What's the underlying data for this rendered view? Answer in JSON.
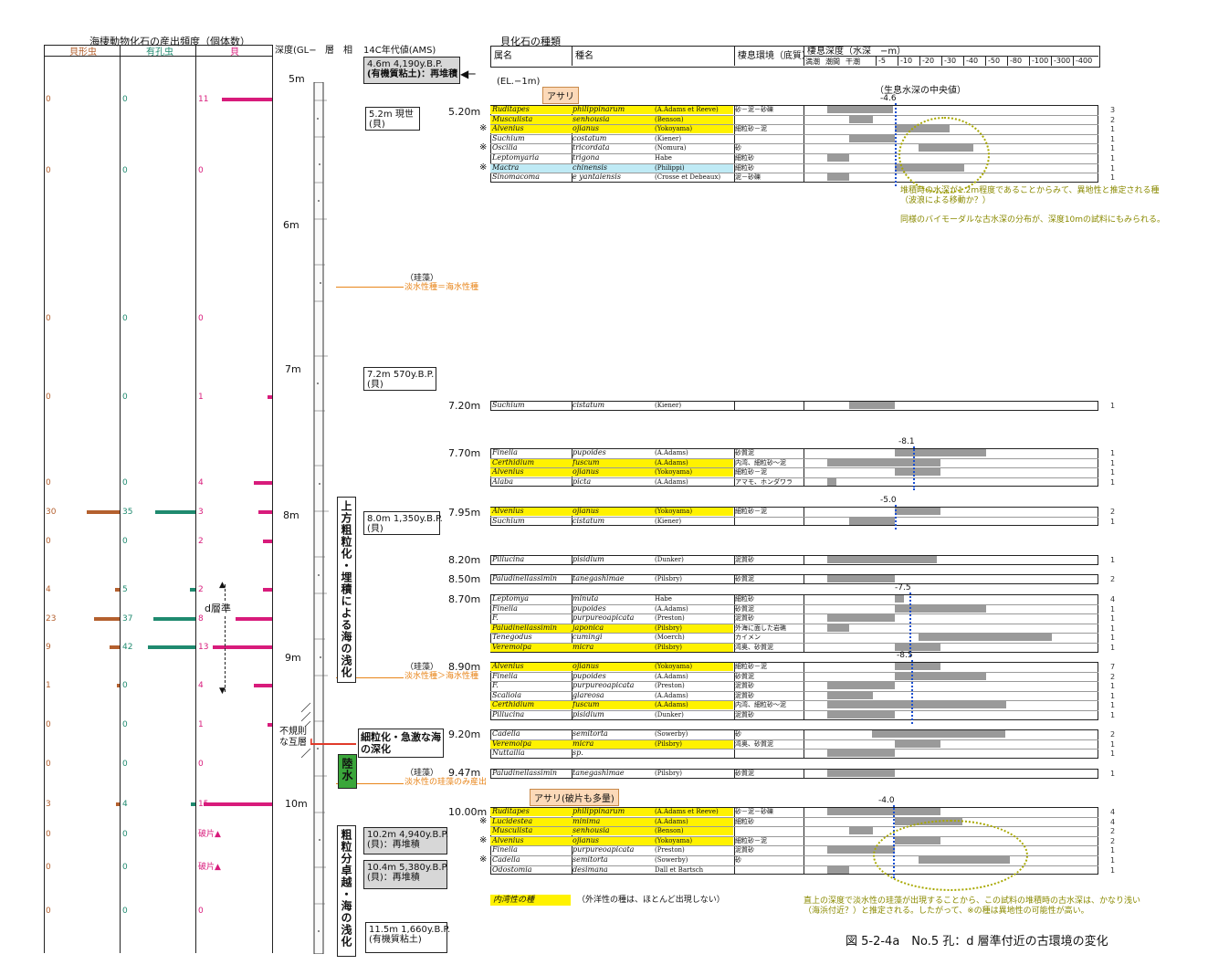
{
  "left_header": {
    "title": "海棲動物化石の産出頻度（個体数）",
    "col1": "貝形虫",
    "col2": "有孔虫",
    "col3": "貝"
  },
  "column_headers": {
    "depth": "深度(GL−",
    "lithology": "層　相",
    "age": "14C年代値(AMS)",
    "shell_title": "貝化石の種類",
    "genus": "属名",
    "species": "種名",
    "habitat": "棲息環境（底質）",
    "depth_range_title": "棲息深度（水深　−m）",
    "depth_zones": [
      "満潮",
      "潮間",
      "干潮"
    ],
    "depth_ticks": [
      "-5",
      "-10",
      "-20",
      "-30",
      "-40",
      "-50",
      "-80",
      "-100",
      "-300",
      "-400"
    ]
  },
  "depth_labels": [
    "5m",
    "6m",
    "7m",
    "8m",
    "9m",
    "10m"
  ],
  "counts": [
    {
      "o": "0",
      "f": "0",
      "m": "11"
    },
    {
      "o": "0",
      "f": "0",
      "m": "0"
    },
    {
      "o": "0",
      "f": "0",
      "m": "0"
    },
    {
      "o": "0",
      "f": "0",
      "m": "1"
    },
    {
      "o": "0",
      "f": "0",
      "m": "4"
    },
    {
      "o": "30",
      "f": "35",
      "m": "3"
    },
    {
      "o": "0",
      "f": "0",
      "m": "2"
    },
    {
      "o": "4",
      "f": "5",
      "m": "2"
    },
    {
      "o": "23",
      "f": "37",
      "m": "8"
    },
    {
      "o": "9",
      "f": "42",
      "m": "13"
    },
    {
      "o": "1",
      "f": "0",
      "m": "4"
    },
    {
      "o": "0",
      "f": "0",
      "m": "1"
    },
    {
      "o": "0",
      "f": "0",
      "m": "0"
    },
    {
      "o": "3",
      "f": "4",
      "m": "15"
    },
    {
      "o": "0",
      "f": "0",
      "m": "破片▲"
    },
    {
      "o": "0",
      "f": "0",
      "m": "破片▲"
    },
    {
      "o": "0",
      "f": "0",
      "m": "0"
    }
  ],
  "d_horizon": "d層準",
  "age_boxes": [
    {
      "line1": "4.6m  4,190y.B.P.",
      "line2": "(有機質粘土)：再堆積"
    },
    {
      "line1": "5.2m  現世",
      "line2": "(貝)"
    },
    {
      "line1": "7.2m  570y.B.P.",
      "line2": "(貝)"
    },
    {
      "line1": "8.0m  1,350y.B.P.",
      "line2": "(貝)"
    },
    {
      "line1": "10.2m  4,940y.B.P.",
      "line2": "(貝)：再堆積"
    },
    {
      "line1": "10.4m  5,380y.B.P.",
      "line2": "(貝)：再堆積"
    },
    {
      "line1": "11.5m  1,660y.B.P.",
      "line2": "(有機質粘土)"
    }
  ],
  "el_label": "(EL.−1m)",
  "diatom_notes": [
    {
      "a": "（珪藻）",
      "b": "淡水性種＝海水性種"
    },
    {
      "a": "（珪藻）",
      "b": "淡水性種＞海水性種"
    },
    {
      "a": "（珪藻）",
      "b": "淡水性の珪藻のみ産出"
    }
  ],
  "sample_depths": [
    "5.20m",
    "7.20m",
    "7.70m",
    "7.95m",
    "8.20m",
    "8.50m",
    "8.70m",
    "8.90m",
    "9.20m",
    "9.47m",
    "10.00m"
  ],
  "interp": {
    "upper": "上方粗粒化・埋積による海の浅化",
    "fining": "細粒化・急激な海の深化",
    "land_water": "陸水",
    "irregular": "不規則な互層",
    "lower": "粗粒分卓越・海の浅化"
  },
  "asari_labels": [
    "アサリ",
    "アサリ(破片も多量)"
  ],
  "median_label": "（生息水深の中央値）",
  "median_values": [
    "-4.6",
    "-8.1",
    "-5.0",
    "-7.5",
    "-8.5",
    "-4.0"
  ],
  "species_groups": [
    {
      "rows": [
        {
          "g": "Ruditapes",
          "s": "philippinarum",
          "a": "(A.Adams et Reeve)",
          "h": "砂－泥－砂礫",
          "n": "3",
          "hl": "yel"
        },
        {
          "g": "Musculista",
          "s": "senhousia",
          "a": "(Benson)",
          "h": "",
          "n": "2",
          "hl": "yel"
        },
        {
          "g": "Alvenius",
          "s": "ojianus",
          "a": "(Yokoyama)",
          "h": "細粒砂－泥",
          "n": "1",
          "hl": "yel",
          "mark": "※"
        },
        {
          "g": "Suchium",
          "s": "costatum",
          "a": "(Kiener)",
          "h": "",
          "n": "1",
          "hl": ""
        },
        {
          "g": "Oscilla",
          "s": "tricordata",
          "a": "(Nomura)",
          "h": "砂",
          "n": "1",
          "hl": "",
          "mark": "※"
        },
        {
          "g": "Leptomyaria",
          "s": "trigona",
          "a": "Habe",
          "h": "細粒砂",
          "n": "1",
          "hl": ""
        },
        {
          "g": "Mactra",
          "s": "chinensis",
          "a": "(Philippi)",
          "h": "細粒砂",
          "n": "1",
          "hl": "cyan",
          "mark": "※"
        },
        {
          "g": "Sinomacoma",
          "s": "e yantaiensis",
          "a": "(Crosse et Debeaux)",
          "h": "泥－砂礫",
          "n": "1",
          "hl": ""
        }
      ]
    },
    {
      "rows": [
        {
          "g": "Suchium",
          "s": "cistatum",
          "a": "(Kiener)",
          "h": "",
          "n": "1",
          "hl": ""
        }
      ]
    },
    {
      "rows": [
        {
          "g": "Finella",
          "s": "pupoides",
          "a": "(A.Adams)",
          "h": "砂質泥",
          "n": "1",
          "hl": ""
        },
        {
          "g": "Certhidium",
          "s": "fuscum",
          "a": "(A.Adams)",
          "h": "内湾、細粒砂～泥",
          "n": "1",
          "hl": "yel"
        },
        {
          "g": "Alvenius",
          "s": "ojianus",
          "a": "(Yokoyama)",
          "h": "細粒砂－泥",
          "n": "1",
          "hl": "yel"
        },
        {
          "g": "Alaba",
          "s": "picta",
          "a": "(A.Adams)",
          "h": "アマモ、ホンダワラ",
          "n": "1",
          "hl": ""
        }
      ]
    },
    {
      "rows": [
        {
          "g": "Alvenius",
          "s": "ojianus",
          "a": "(Yokoyama)",
          "h": "細粒砂－泥",
          "n": "2",
          "hl": "yel"
        },
        {
          "g": "Suchium",
          "s": "cistatum",
          "a": "(Kiener)",
          "h": "",
          "n": "1",
          "hl": ""
        }
      ]
    },
    {
      "rows": [
        {
          "g": "Pillucina",
          "s": "pisidium",
          "a": "(Dunker)",
          "h": "泥質砂",
          "n": "1",
          "hl": ""
        }
      ]
    },
    {
      "rows": [
        {
          "g": "Paludinellassimin",
          "s": "tanegashimae",
          "a": "(Pilsbry)",
          "h": "砂質泥",
          "n": "2",
          "hl": ""
        }
      ]
    },
    {
      "rows": [
        {
          "g": "Leptomya",
          "s": "minuta",
          "a": "Habe",
          "h": "細粒砂",
          "n": "4",
          "hl": ""
        },
        {
          "g": "Finella",
          "s": "pupoides",
          "a": "(A.Adams)",
          "h": "砂質泥",
          "n": "1",
          "hl": ""
        },
        {
          "g": "F.",
          "s": "purpureoapicata",
          "a": "(Preston)",
          "h": "泥質砂",
          "n": "1",
          "hl": ""
        },
        {
          "g": "Paludinellassimin",
          "s": "japonica",
          "a": "(Pilsbry)",
          "h": "外海に面した岩礁",
          "n": "1",
          "hl": "yel"
        },
        {
          "g": "Tenegodus",
          "s": "cumingi",
          "a": "(Moerch)",
          "h": "カイメン",
          "n": "1",
          "hl": ""
        },
        {
          "g": "Veremolpa",
          "s": "micra",
          "a": "(Pilsbry)",
          "h": "湾奥、砂質泥",
          "n": "1",
          "hl": "yel"
        }
      ]
    },
    {
      "rows": [
        {
          "g": "Alvenius",
          "s": "ojianus",
          "a": "(Yokoyama)",
          "h": "細粒砂－泥",
          "n": "7",
          "hl": "yel"
        },
        {
          "g": "Finella",
          "s": "pupoides",
          "a": "(A.Adams)",
          "h": "砂質泥",
          "n": "2",
          "hl": ""
        },
        {
          "g": "F.",
          "s": "purpureoapicata",
          "a": "(Preston)",
          "h": "泥質砂",
          "n": "1",
          "hl": ""
        },
        {
          "g": "Scaliola",
          "s": "glareosa",
          "a": "(A.Adams)",
          "h": "泥質砂",
          "n": "1",
          "hl": ""
        },
        {
          "g": "Certhidium",
          "s": "fuscum",
          "a": "(A.Adams)",
          "h": "内湾、細粒砂～泥",
          "n": "1",
          "hl": "yel"
        },
        {
          "g": "Pillucina",
          "s": "pisidium",
          "a": "(Dunker)",
          "h": "泥質砂",
          "n": "1",
          "hl": ""
        }
      ]
    },
    {
      "rows": [
        {
          "g": "Cadella",
          "s": "semitorta",
          "a": "(Sowerby)",
          "h": "砂",
          "n": "2",
          "hl": ""
        },
        {
          "g": "Veremolpa",
          "s": "micra",
          "a": "(Pilsbry)",
          "h": "湾奥、砂質泥",
          "n": "1",
          "hl": "yel"
        },
        {
          "g": "Nuttallia",
          "s": "sp.",
          "a": "",
          "h": "",
          "n": "1",
          "hl": ""
        }
      ]
    },
    {
      "rows": [
        {
          "g": "Paludinellassimin",
          "s": "tanegashimae",
          "a": "(Pilsbry)",
          "h": "砂質泥",
          "n": "1",
          "hl": ""
        }
      ]
    },
    {
      "rows": [
        {
          "g": "Ruditapes",
          "s": "philippinarum",
          "a": "(A.Adams et Reeve)",
          "h": "砂－泥－砂礫",
          "n": "4",
          "hl": "yel"
        },
        {
          "g": "Lucidestea",
          "s": "minima",
          "a": "(A.Adams)",
          "h": "細粒砂",
          "n": "4",
          "hl": "yel",
          "mark": "※"
        },
        {
          "g": "Musculista",
          "s": "senhousia",
          "a": "(Benson)",
          "h": "",
          "n": "2",
          "hl": "yel"
        },
        {
          "g": "Alvenius",
          "s": "ojianus",
          "a": "(Yokoyama)",
          "h": "細粒砂－泥",
          "n": "2",
          "hl": "yel",
          "mark": "※"
        },
        {
          "g": "Finella",
          "s": "purpureoapicata",
          "a": "(Preston)",
          "h": "泥質砂",
          "n": "1",
          "hl": ""
        },
        {
          "g": "Cadella",
          "s": "semitorta",
          "a": "(Sowerby)",
          "h": "砂",
          "n": "1",
          "hl": "",
          "mark": "※"
        },
        {
          "g": "Odostomia",
          "s": "desimana",
          "a": "Dall et Bartsch",
          "h": "",
          "n": "1",
          "hl": ""
        }
      ]
    }
  ],
  "notes": {
    "n1": "堆積時の水深が1.2m程度であることからみて、異地性と推定される種",
    "n1b": "（波浪による移動か？）",
    "n2": "同様のバイモーダルな古水深の分布が、深度10mの試料にもみられる。",
    "n3": "直上の深度で淡水性の珪藻が出現することから、この試料の堆積時の古水深は、かなり浅い",
    "n3b": "（海浜付近？）と推定される。したがって、※の種は異地性の可能性が高い。"
  },
  "legend": {
    "swatch_label": "内湾性の種",
    "note": "（外洋性の種は、ほとんど出現しない）"
  },
  "figure_caption": "図 5-2-4a　No.5 孔：d 層準付近の古環境の変化",
  "colors": {
    "ostracod": "#b4602e",
    "foram": "#1f8a6f",
    "mollusc": "#d81b7b",
    "highlight": "#fff200",
    "cyan": "#bfeaf5",
    "gray_bar": "#9a9a9a",
    "median": "#1a4fd0",
    "olive": "#8a8a00",
    "orange": "#e8851a",
    "green": "#3aa63a",
    "red_arrow": "#e03a2a"
  }
}
